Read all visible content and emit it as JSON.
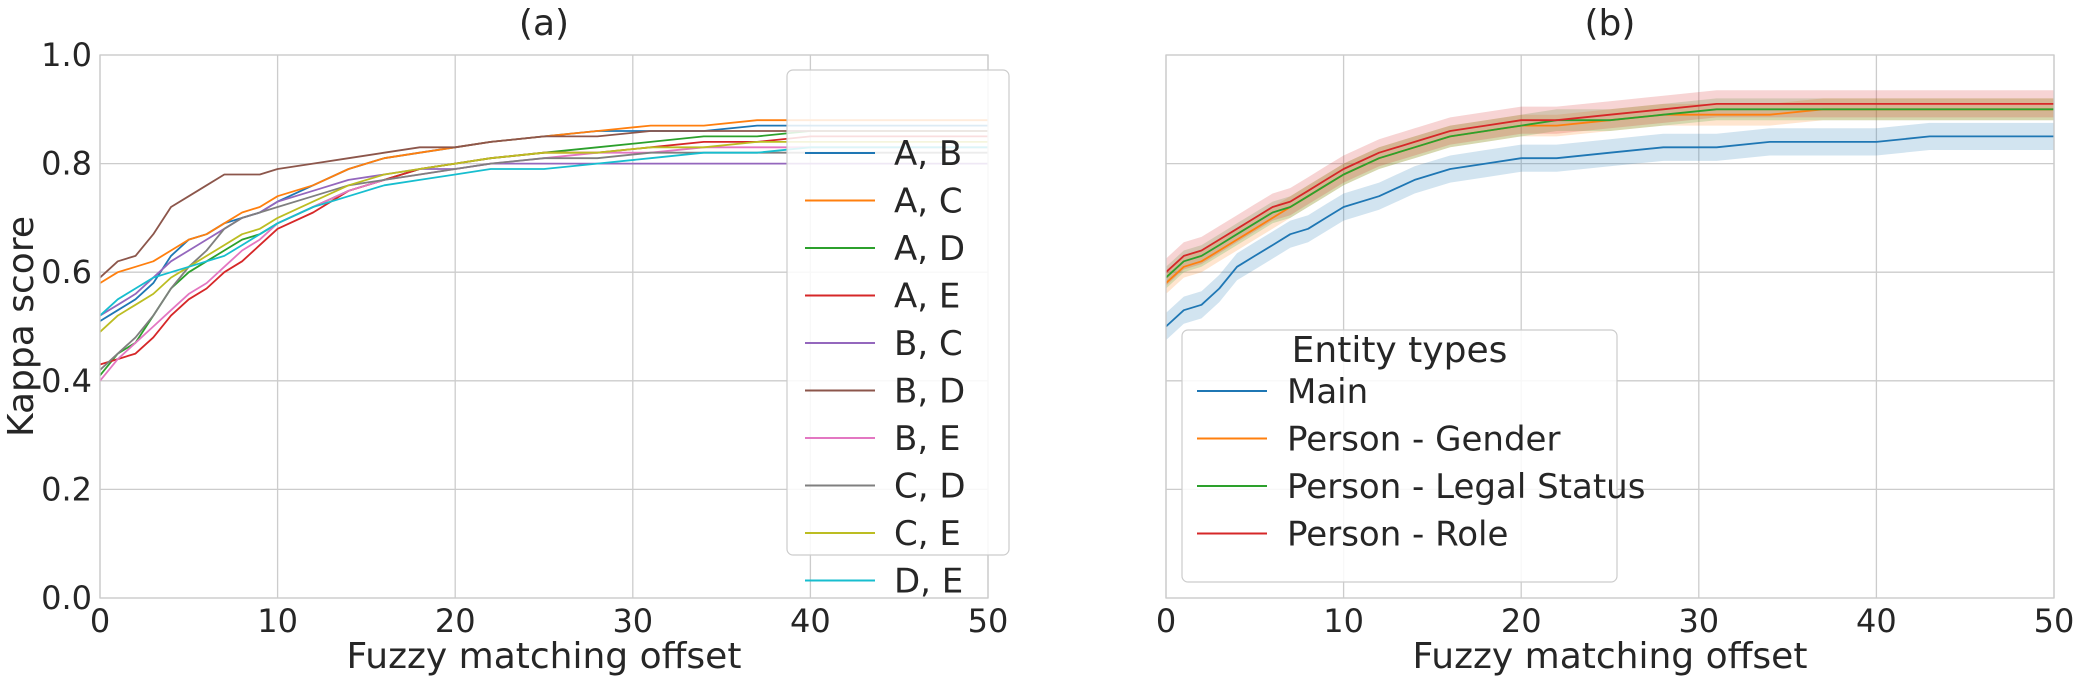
{
  "chart_data": [
    {
      "type": "line",
      "title": "(a)",
      "xlabel": "Fuzzy matching offset",
      "ylabel": "Kappa score",
      "xlim": [
        0,
        50
      ],
      "ylim": [
        0,
        1
      ],
      "xticks": [
        "0",
        "10",
        "20",
        "30",
        "40",
        "50"
      ],
      "yticks": [
        "0.0",
        "0.2",
        "0.4",
        "0.6",
        "0.8",
        "1.0"
      ],
      "grid": true,
      "legend": "upper-right",
      "x": [
        0,
        1,
        2,
        3,
        4,
        5,
        6,
        7,
        8,
        9,
        10,
        12,
        14,
        16,
        18,
        20,
        22,
        25,
        28,
        31,
        34,
        37,
        40,
        43,
        46,
        50
      ],
      "series": [
        {
          "name": "A, B",
          "color": "#1f77b4",
          "values": [
            0.51,
            0.53,
            0.55,
            0.58,
            0.63,
            0.66,
            0.67,
            0.69,
            0.7,
            0.71,
            0.73,
            0.76,
            0.79,
            0.81,
            0.82,
            0.83,
            0.84,
            0.85,
            0.86,
            0.86,
            0.86,
            0.87,
            0.87,
            0.87,
            0.87,
            0.87
          ]
        },
        {
          "name": "A, C",
          "color": "#ff7f0e",
          "values": [
            0.58,
            0.6,
            0.61,
            0.62,
            0.64,
            0.66,
            0.67,
            0.69,
            0.71,
            0.72,
            0.74,
            0.76,
            0.79,
            0.81,
            0.82,
            0.83,
            0.84,
            0.85,
            0.86,
            0.87,
            0.87,
            0.88,
            0.88,
            0.88,
            0.88,
            0.88
          ]
        },
        {
          "name": "A, D",
          "color": "#2ca02c",
          "values": [
            0.41,
            0.45,
            0.47,
            0.52,
            0.57,
            0.6,
            0.62,
            0.64,
            0.66,
            0.67,
            0.69,
            0.72,
            0.75,
            0.77,
            0.79,
            0.8,
            0.81,
            0.82,
            0.83,
            0.84,
            0.85,
            0.85,
            0.86,
            0.86,
            0.86,
            0.86
          ]
        },
        {
          "name": "A, E",
          "color": "#d62728",
          "values": [
            0.43,
            0.44,
            0.45,
            0.48,
            0.52,
            0.55,
            0.57,
            0.6,
            0.62,
            0.65,
            0.68,
            0.71,
            0.75,
            0.77,
            0.79,
            0.8,
            0.81,
            0.82,
            0.82,
            0.83,
            0.84,
            0.84,
            0.85,
            0.85,
            0.85,
            0.85
          ]
        },
        {
          "name": "B, C",
          "color": "#9467bd",
          "values": [
            0.52,
            0.54,
            0.56,
            0.59,
            0.62,
            0.64,
            0.66,
            0.68,
            0.7,
            0.71,
            0.73,
            0.75,
            0.77,
            0.78,
            0.79,
            0.79,
            0.8,
            0.8,
            0.8,
            0.8,
            0.8,
            0.8,
            0.8,
            0.8,
            0.8,
            0.8
          ]
        },
        {
          "name": "B, D",
          "color": "#8c564b",
          "values": [
            0.59,
            0.62,
            0.63,
            0.67,
            0.72,
            0.74,
            0.76,
            0.78,
            0.78,
            0.78,
            0.79,
            0.8,
            0.81,
            0.82,
            0.83,
            0.83,
            0.84,
            0.85,
            0.85,
            0.86,
            0.86,
            0.86,
            0.86,
            0.86,
            0.86,
            0.86
          ]
        },
        {
          "name": "B, E",
          "color": "#e377c2",
          "values": [
            0.4,
            0.44,
            0.47,
            0.5,
            0.53,
            0.56,
            0.58,
            0.61,
            0.64,
            0.66,
            0.69,
            0.72,
            0.75,
            0.77,
            0.78,
            0.79,
            0.8,
            0.81,
            0.82,
            0.82,
            0.83,
            0.83,
            0.83,
            0.83,
            0.83,
            0.83
          ]
        },
        {
          "name": "C, D",
          "color": "#7f7f7f",
          "values": [
            0.42,
            0.45,
            0.48,
            0.52,
            0.57,
            0.61,
            0.64,
            0.68,
            0.7,
            0.71,
            0.72,
            0.74,
            0.76,
            0.77,
            0.78,
            0.79,
            0.8,
            0.81,
            0.81,
            0.82,
            0.82,
            0.82,
            0.82,
            0.82,
            0.82,
            0.82
          ]
        },
        {
          "name": "C, E",
          "color": "#bcbd22",
          "values": [
            0.49,
            0.52,
            0.54,
            0.56,
            0.59,
            0.61,
            0.63,
            0.65,
            0.67,
            0.68,
            0.7,
            0.73,
            0.76,
            0.78,
            0.79,
            0.8,
            0.81,
            0.82,
            0.82,
            0.83,
            0.83,
            0.84,
            0.84,
            0.84,
            0.84,
            0.84
          ]
        },
        {
          "name": "D, E",
          "color": "#17becf",
          "values": [
            0.52,
            0.55,
            0.57,
            0.59,
            0.6,
            0.61,
            0.62,
            0.63,
            0.65,
            0.67,
            0.69,
            0.72,
            0.74,
            0.76,
            0.77,
            0.78,
            0.79,
            0.79,
            0.8,
            0.81,
            0.82,
            0.82,
            0.83,
            0.83,
            0.83,
            0.83
          ]
        }
      ]
    },
    {
      "type": "line",
      "title": "(b)",
      "xlabel": "Fuzzy matching offset",
      "ylabel": "",
      "xlim": [
        0,
        50
      ],
      "ylim": [
        0,
        1
      ],
      "xticks": [
        "0",
        "10",
        "20",
        "30",
        "40",
        "50"
      ],
      "grid": true,
      "legend_title": "Entity types",
      "legend": "lower-left",
      "x": [
        0,
        1,
        2,
        3,
        4,
        5,
        6,
        7,
        8,
        9,
        10,
        12,
        14,
        16,
        18,
        20,
        22,
        25,
        28,
        31,
        34,
        37,
        40,
        43,
        46,
        50
      ],
      "series": [
        {
          "name": "Main",
          "color": "#1f77b4",
          "band": 0.025,
          "values": [
            0.5,
            0.53,
            0.54,
            0.57,
            0.61,
            0.63,
            0.65,
            0.67,
            0.68,
            0.7,
            0.72,
            0.74,
            0.77,
            0.79,
            0.8,
            0.81,
            0.81,
            0.82,
            0.83,
            0.83,
            0.84,
            0.84,
            0.84,
            0.85,
            0.85,
            0.85
          ]
        },
        {
          "name": "Person - Gender",
          "color": "#ff7f0e",
          "band": 0.02,
          "values": [
            0.58,
            0.61,
            0.62,
            0.64,
            0.66,
            0.68,
            0.7,
            0.72,
            0.74,
            0.76,
            0.78,
            0.81,
            0.83,
            0.85,
            0.86,
            0.87,
            0.87,
            0.88,
            0.89,
            0.89,
            0.89,
            0.9,
            0.9,
            0.9,
            0.9,
            0.9
          ]
        },
        {
          "name": "Person - Legal Status",
          "color": "#2ca02c",
          "band": 0.02,
          "values": [
            0.59,
            0.62,
            0.63,
            0.65,
            0.67,
            0.69,
            0.71,
            0.72,
            0.74,
            0.76,
            0.78,
            0.81,
            0.83,
            0.85,
            0.86,
            0.87,
            0.88,
            0.88,
            0.89,
            0.9,
            0.9,
            0.9,
            0.9,
            0.9,
            0.9,
            0.9
          ]
        },
        {
          "name": "Person - Role",
          "color": "#d62728",
          "band": 0.025,
          "values": [
            0.6,
            0.63,
            0.64,
            0.66,
            0.68,
            0.7,
            0.72,
            0.73,
            0.75,
            0.77,
            0.79,
            0.82,
            0.84,
            0.86,
            0.87,
            0.88,
            0.88,
            0.89,
            0.9,
            0.91,
            0.91,
            0.91,
            0.91,
            0.91,
            0.91,
            0.91
          ]
        }
      ]
    }
  ]
}
